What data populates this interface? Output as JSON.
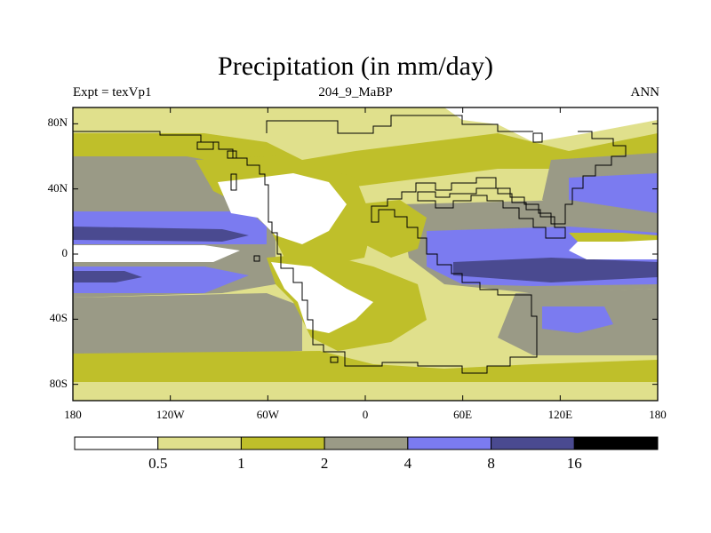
{
  "title": "Precipitation (in mm/day)",
  "experiment_label": "Expt = texVp1",
  "case_label": "204_9_MaBP",
  "season_label": "ANN",
  "lat_ticks": [
    {
      "label": "80N",
      "lat": 80
    },
    {
      "label": "40N",
      "lat": 40
    },
    {
      "label": "0",
      "lat": 0
    },
    {
      "label": "40S",
      "lat": -40
    },
    {
      "label": "80S",
      "lat": -80
    }
  ],
  "lon_ticks": [
    {
      "label": "180",
      "lon": -180
    },
    {
      "label": "120W",
      "lon": -120
    },
    {
      "label": "60W",
      "lon": -60
    },
    {
      "label": "0",
      "lon": 0
    },
    {
      "label": "60E",
      "lon": 60
    },
    {
      "label": "120E",
      "lon": 120
    },
    {
      "label": "180",
      "lon": 180
    }
  ],
  "colorbar": {
    "levels": [
      "0.5",
      "1",
      "2",
      "4",
      "8",
      "16"
    ],
    "colors": [
      "#ffffff",
      "#e0e08c",
      "#bfbf2a",
      "#9a9a86",
      "#7b7bf0",
      "#4a4a90",
      "#000000"
    ]
  },
  "colors": {
    "c0": "#ffffff",
    "c1": "#e0e08c",
    "c2": "#bfbf2a",
    "c3": "#9a9a86",
    "c4": "#7b7bf0",
    "c5": "#4a4a90"
  }
}
